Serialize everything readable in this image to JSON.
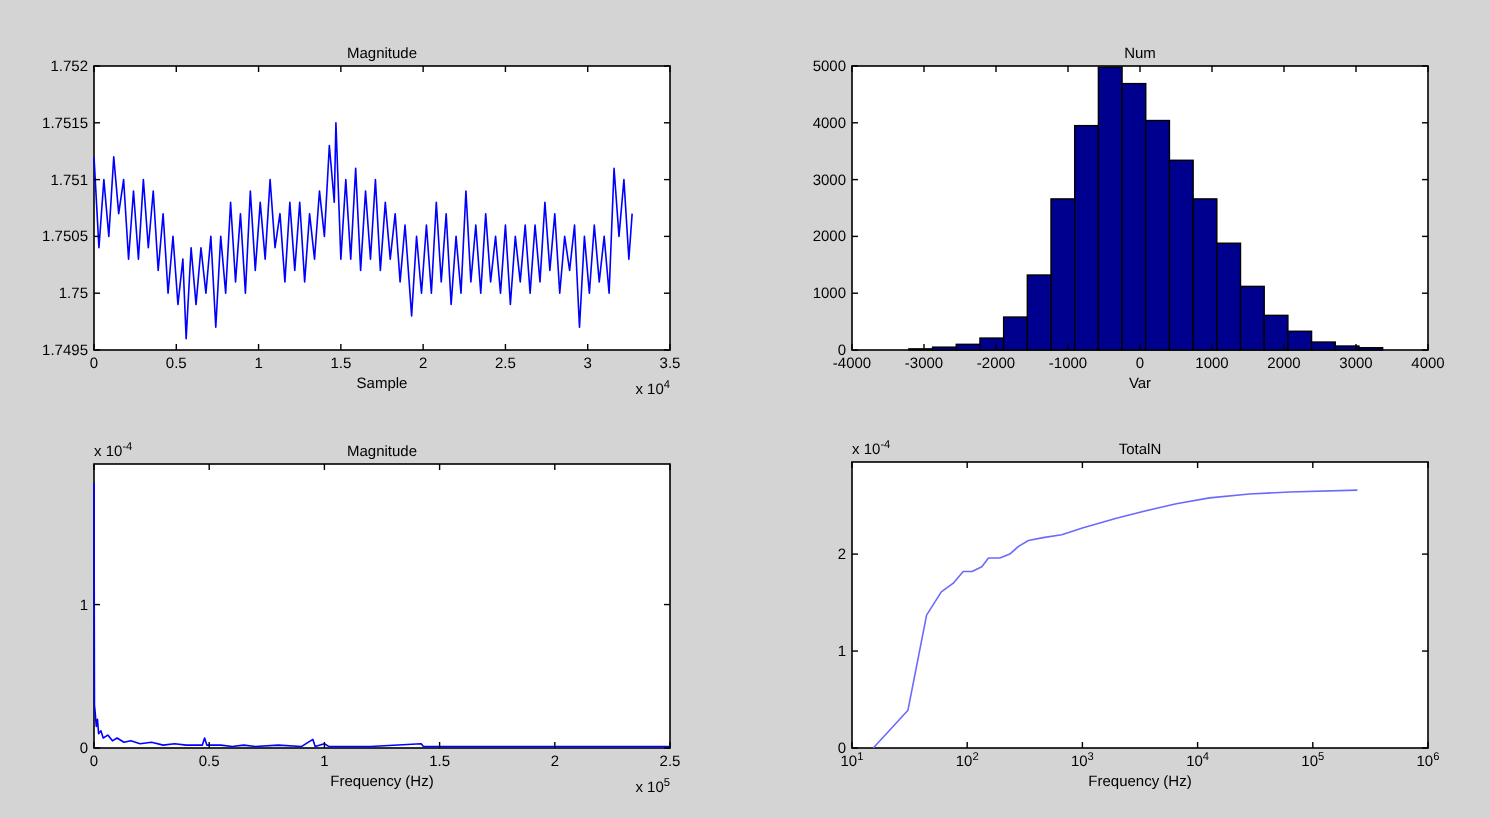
{
  "chart_data": [
    {
      "type": "line",
      "title": "Magnitude",
      "xlabel": "Sample",
      "color": "#0000ff",
      "xlim": [
        0,
        3.5
      ],
      "ylim": [
        1.7495,
        1.752
      ],
      "xticks": [
        0,
        0.5,
        1,
        1.5,
        2,
        2.5,
        3,
        3.5
      ],
      "yticks": [
        1.7495,
        1.75,
        1.7505,
        1.751,
        1.7515,
        1.752
      ],
      "annotations": [
        "x 10$^{4}$"
      ],
      "x": [
        0,
        0.03,
        0.06,
        0.09,
        0.12,
        0.15,
        0.18,
        0.21,
        0.24,
        0.27,
        0.3,
        0.33,
        0.36,
        0.39,
        0.42,
        0.45,
        0.48,
        0.51,
        0.54,
        0.56,
        0.59,
        0.62,
        0.65,
        0.68,
        0.71,
        0.74,
        0.77,
        0.8,
        0.83,
        0.86,
        0.89,
        0.92,
        0.95,
        0.98,
        1.01,
        1.04,
        1.07,
        1.1,
        1.13,
        1.16,
        1.19,
        1.22,
        1.25,
        1.28,
        1.31,
        1.34,
        1.37,
        1.4,
        1.43,
        1.46,
        1.47,
        1.5,
        1.53,
        1.56,
        1.59,
        1.62,
        1.65,
        1.68,
        1.71,
        1.74,
        1.77,
        1.8,
        1.83,
        1.86,
        1.89,
        1.93,
        1.96,
        1.99,
        2.02,
        2.05,
        2.08,
        2.11,
        2.14,
        2.17,
        2.2,
        2.23,
        2.26,
        2.29,
        2.32,
        2.35,
        2.38,
        2.41,
        2.44,
        2.47,
        2.5,
        2.53,
        2.56,
        2.59,
        2.62,
        2.65,
        2.68,
        2.71,
        2.74,
        2.77,
        2.8,
        2.83,
        2.86,
        2.89,
        2.92,
        2.95,
        2.98,
        3.01,
        3.04,
        3.07,
        3.1,
        3.13,
        3.16,
        3.19,
        3.22,
        3.25,
        3.27
      ],
      "values": [
        1.7512,
        1.7504,
        1.751,
        1.7505,
        1.7512,
        1.7507,
        1.751,
        1.7503,
        1.7509,
        1.7503,
        1.751,
        1.7504,
        1.7509,
        1.7502,
        1.7507,
        1.75,
        1.7505,
        1.7499,
        1.7503,
        1.7496,
        1.7504,
        1.7499,
        1.7504,
        1.75,
        1.7505,
        1.7497,
        1.7505,
        1.75,
        1.7508,
        1.7501,
        1.7507,
        1.75,
        1.7509,
        1.7502,
        1.7508,
        1.7503,
        1.751,
        1.7504,
        1.7507,
        1.7501,
        1.7508,
        1.7502,
        1.7508,
        1.7501,
        1.7507,
        1.7503,
        1.7509,
        1.7505,
        1.7513,
        1.7508,
        1.7515,
        1.7503,
        1.751,
        1.7503,
        1.7511,
        1.7502,
        1.7509,
        1.7503,
        1.751,
        1.7502,
        1.7508,
        1.7503,
        1.7507,
        1.7501,
        1.7506,
        1.7498,
        1.7505,
        1.75,
        1.7506,
        1.75,
        1.7508,
        1.7501,
        1.7507,
        1.7499,
        1.7505,
        1.75,
        1.7509,
        1.7501,
        1.7506,
        1.75,
        1.7507,
        1.7501,
        1.7505,
        1.75,
        1.7506,
        1.7499,
        1.7505,
        1.7501,
        1.7506,
        1.75,
        1.7506,
        1.7501,
        1.7508,
        1.7502,
        1.7507,
        1.75,
        1.7505,
        1.7502,
        1.7506,
        1.7497,
        1.7505,
        1.75,
        1.7506,
        1.7501,
        1.7505,
        1.75,
        1.7511,
        1.7505,
        1.751,
        1.7503,
        1.7507
      ]
    },
    {
      "type": "histogram",
      "title": "Num",
      "xlabel": "Var",
      "color": "#00008f",
      "xlim": [
        -4000,
        4000
      ],
      "ylim": [
        0,
        5000
      ],
      "xticks": [
        -4000,
        -3000,
        -2000,
        -1000,
        0,
        1000,
        2000,
        3000,
        4000
      ],
      "yticks": [
        0,
        1000,
        2000,
        3000,
        4000,
        5000
      ],
      "bins": [
        -3210,
        -2881,
        -2552,
        -2223,
        -1894,
        -1565,
        -1236,
        -907,
        -578,
        -249,
        80,
        409,
        738,
        1067,
        1396,
        1725,
        2054,
        2383,
        2712,
        3041,
        3370
      ],
      "values": [
        20,
        50,
        100,
        210,
        580,
        1320,
        2660,
        3950,
        4980,
        4690,
        4040,
        3340,
        2660,
        1880,
        1120,
        610,
        330,
        140,
        70,
        40
      ]
    },
    {
      "type": "line",
      "title": "Magnitude",
      "xlabel": "Frequency (Hz)",
      "color": "#0000ff",
      "xlim": [
        0,
        2.5
      ],
      "ylim": [
        0,
        1.98
      ],
      "xticks": [
        0,
        0.5,
        1,
        1.5,
        2,
        2.5
      ],
      "yticks": [
        0,
        1
      ],
      "annotations": [
        "x 10$^{-4}$",
        "x 10$^{5}$"
      ],
      "x": [
        0,
        0.002,
        0.005,
        0.01,
        0.015,
        0.02,
        0.03,
        0.04,
        0.06,
        0.08,
        0.1,
        0.13,
        0.16,
        0.2,
        0.25,
        0.3,
        0.35,
        0.4,
        0.47,
        0.48,
        0.49,
        0.55,
        0.6,
        0.65,
        0.7,
        0.8,
        0.9,
        0.95,
        0.96,
        1,
        1.02,
        1.1,
        1.2,
        1.42,
        1.43,
        1.6,
        2,
        2.5
      ],
      "values": [
        1.85,
        0.3,
        0.25,
        0.15,
        0.2,
        0.1,
        0.12,
        0.07,
        0.09,
        0.05,
        0.07,
        0.04,
        0.05,
        0.03,
        0.04,
        0.02,
        0.03,
        0.02,
        0.02,
        0.07,
        0.02,
        0.02,
        0.01,
        0.02,
        0.01,
        0.02,
        0.01,
        0.06,
        0.01,
        0.03,
        0.01,
        0.01,
        0.01,
        0.03,
        0.01,
        0.01,
        0.01,
        0.01
      ]
    },
    {
      "type": "line",
      "title": "TotalN",
      "xlabel": "Frequency (Hz)",
      "color": "#6a6aff",
      "log": "x",
      "xlim": [
        10,
        1000000
      ],
      "ylim": [
        0,
        2.95
      ],
      "xticks": [
        {
          "value": 10,
          "label": "10$^{1}$"
        },
        {
          "value": 100,
          "label": "10$^{2}$"
        },
        {
          "value": 1000,
          "label": "10$^{3}$"
        },
        {
          "value": 10000,
          "label": "10$^{4}$"
        },
        {
          "value": 100000,
          "label": "10$^{5}$"
        },
        {
          "value": 1000000,
          "label": "10$^{6}$"
        }
      ],
      "yticks": [
        0,
        1,
        2
      ],
      "annotations": [
        "x 10$^{-4}$"
      ],
      "x": [
        15.3,
        30.6,
        44.4,
        59.6,
        75.7,
        92.3,
        110,
        134,
        153,
        192,
        234,
        279,
        340,
        456,
        662,
        1000,
        1972,
        3357,
        6530,
        12700,
        28200,
        62800,
        243800
      ],
      "values": [
        0,
        0.39,
        1.37,
        1.61,
        1.7,
        1.82,
        1.82,
        1.87,
        1.96,
        1.96,
        2,
        2.08,
        2.14,
        2.17,
        2.2,
        2.27,
        2.37,
        2.44,
        2.52,
        2.58,
        2.62,
        2.64,
        2.66
      ]
    }
  ]
}
